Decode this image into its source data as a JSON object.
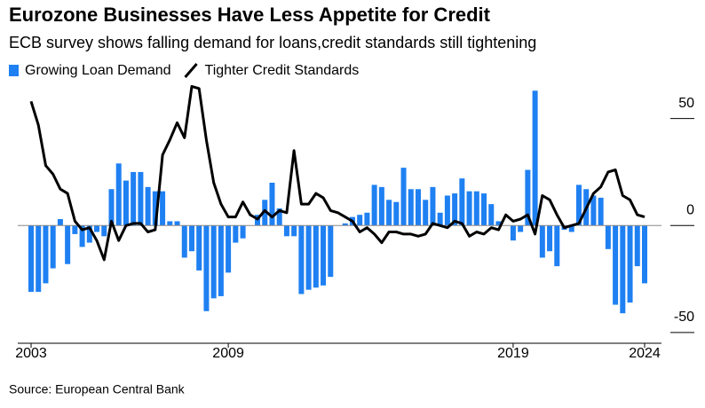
{
  "chart_data": {
    "type": "bar-line",
    "title": "Eurozone Businesses Have Less Appetite for Credit",
    "subtitle": "ECB survey shows falling demand for loans,credit standards still tightening",
    "source": "Source: European Central Bank",
    "categories": [
      "2003",
      null,
      null,
      null,
      null,
      null,
      null,
      null,
      null,
      null,
      null,
      null,
      null,
      null,
      null,
      null,
      null,
      null,
      null,
      null,
      null,
      null,
      null,
      null,
      null,
      null,
      null,
      "2009",
      null,
      null,
      null,
      null,
      null,
      null,
      null,
      null,
      null,
      null,
      null,
      null,
      null,
      null,
      null,
      null,
      null,
      null,
      null,
      null,
      null,
      null,
      null,
      null,
      null,
      null,
      null,
      null,
      null,
      null,
      null,
      null,
      null,
      null,
      null,
      null,
      null,
      null,
      "2019",
      null,
      null,
      null,
      null,
      null,
      null,
      null,
      null,
      null,
      null,
      null,
      null,
      null,
      null,
      null,
      null,
      null,
      "2024"
    ],
    "series": [
      {
        "name": "Growing Loan Demand",
        "kind": "bar",
        "color": "#1f80f2",
        "values": [
          -31,
          -31,
          -27,
          -20,
          3,
          -18,
          -4,
          -10,
          -8,
          -3,
          -5,
          17,
          29,
          21,
          25,
          25,
          18,
          16,
          16,
          2,
          2,
          -15,
          -12,
          -21,
          -40,
          -34,
          -33,
          -22,
          -8,
          -6,
          0,
          5,
          12,
          20,
          8,
          -5,
          -5,
          -32,
          -30,
          -29,
          -28,
          -24,
          0,
          1,
          4,
          5,
          6,
          19,
          18,
          12,
          11,
          27,
          17,
          17,
          12,
          18,
          6,
          14,
          15,
          22,
          16,
          16,
          15,
          10,
          2,
          0,
          -7,
          -3,
          26,
          63,
          -15,
          -12,
          -19,
          -2,
          -3,
          19,
          17,
          14,
          13,
          -11,
          -37,
          -41,
          -36,
          -19,
          -27
        ]
      },
      {
        "name": "Tighter Credit Standards",
        "kind": "line",
        "color": "#000000",
        "values": [
          58,
          47,
          28,
          24,
          17,
          15,
          2,
          -2,
          -1,
          -7,
          -16,
          2,
          -7,
          0,
          1,
          1,
          -3,
          -2,
          33,
          40,
          48,
          41,
          65,
          64,
          40,
          20,
          10,
          4,
          4,
          11,
          5,
          3,
          7,
          4,
          7,
          6,
          35,
          10,
          10,
          15,
          13,
          7,
          6,
          4,
          2,
          -3,
          -1,
          -4,
          -8,
          -3,
          -3,
          -4,
          -4,
          -5,
          -4,
          1,
          0,
          -1,
          2,
          1,
          -5,
          -3,
          -4,
          -1,
          -2,
          5,
          2,
          3,
          5,
          -4,
          14,
          12,
          5,
          -1,
          0,
          1,
          8,
          15,
          18,
          25,
          26,
          14,
          12,
          5,
          4
        ]
      }
    ],
    "ylim": [
      -55,
      66
    ],
    "yticks": [
      -50,
      0,
      50
    ]
  }
}
